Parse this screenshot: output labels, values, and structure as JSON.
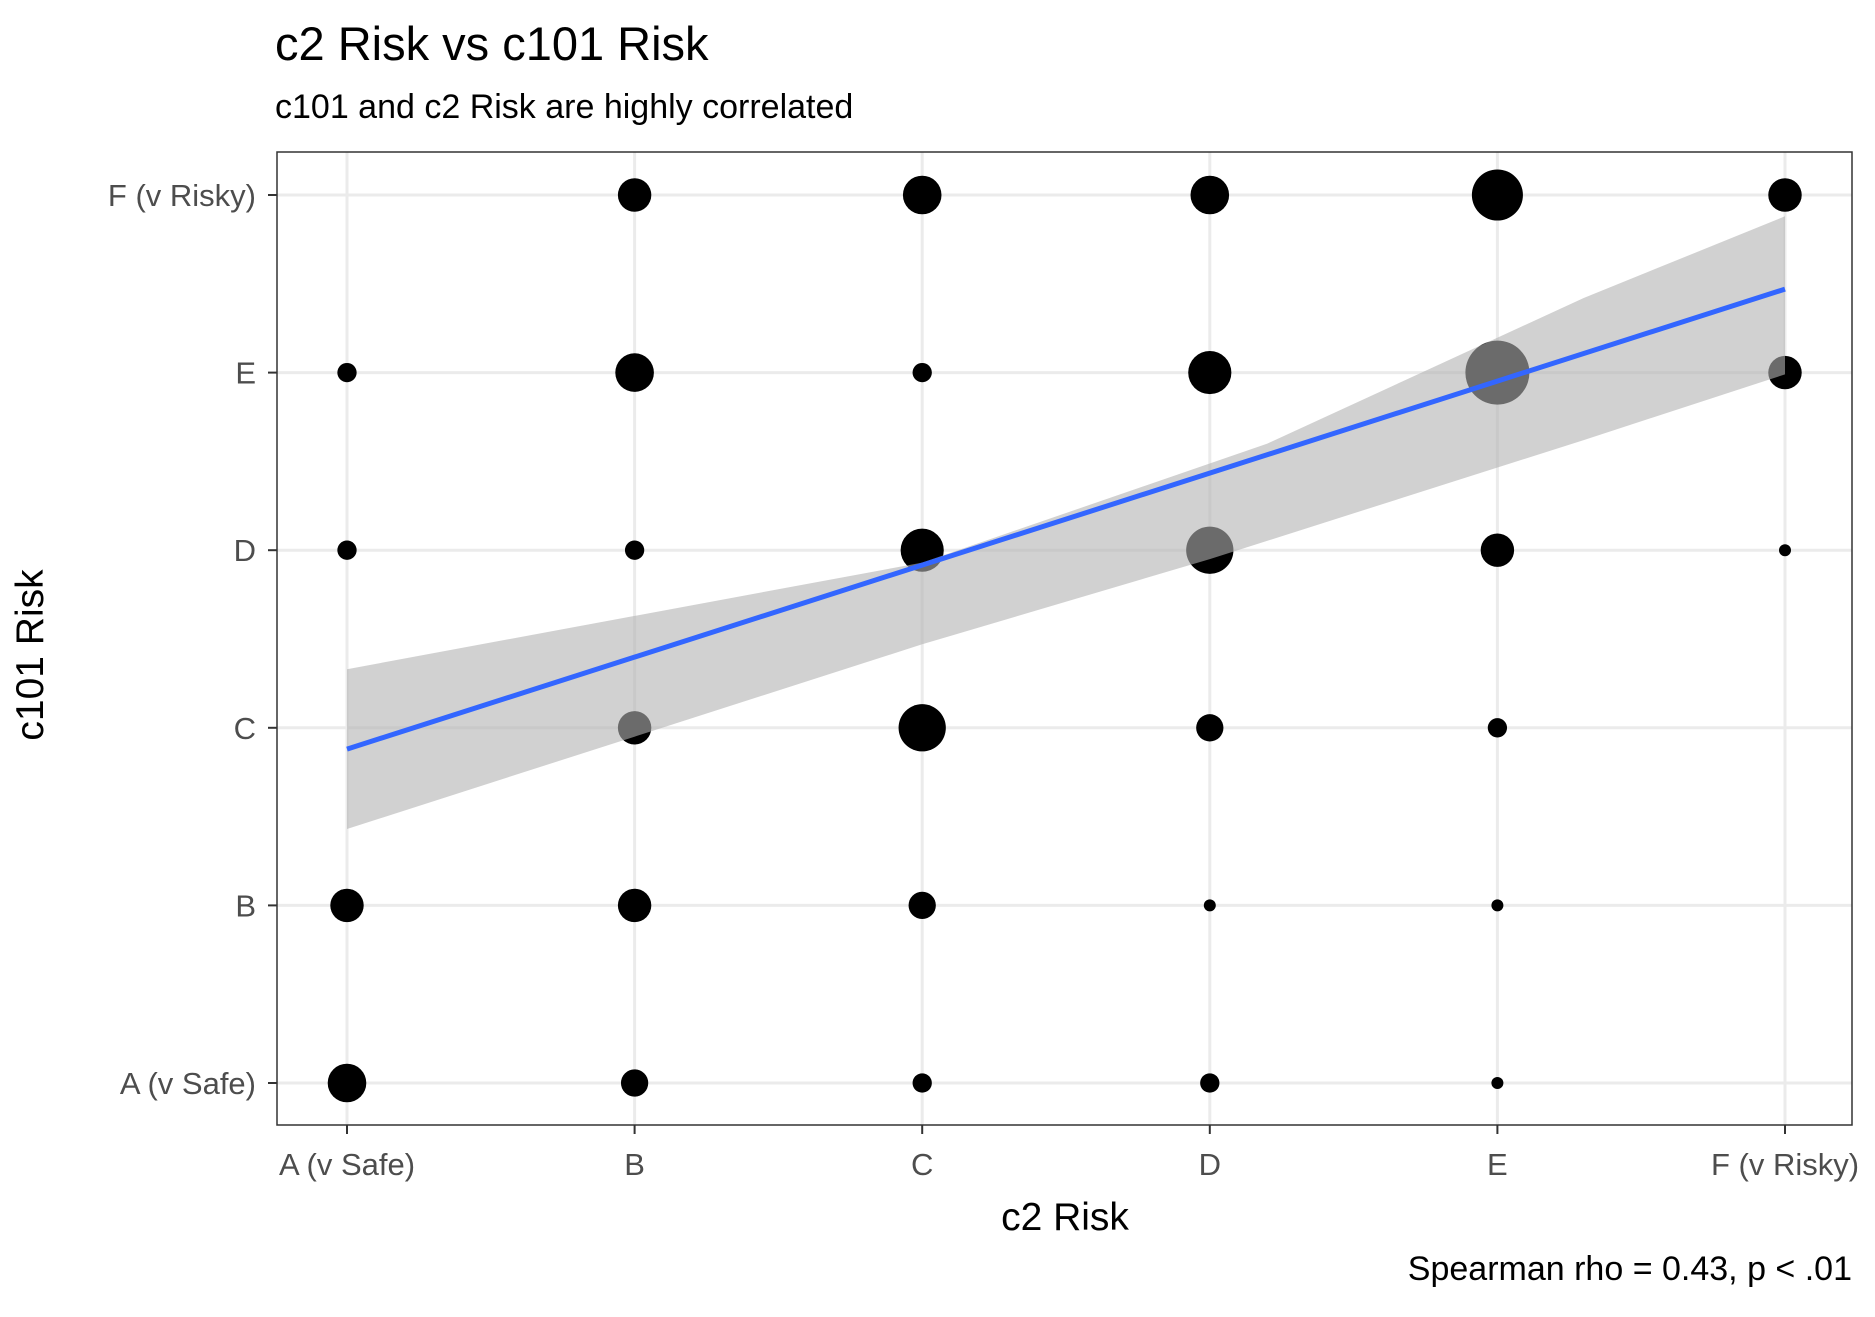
{
  "chart_data": {
    "type": "scatter",
    "title": "c2 Risk vs c101 Risk",
    "subtitle": "c101 and c2 Risk are highly correlated",
    "xlabel": "c2 Risk",
    "ylabel": "c101 Risk",
    "caption": "Spearman rho = 0.43, p < .01",
    "x_categories": [
      "A (v Safe)",
      "B",
      "C",
      "D",
      "E",
      "F (v Risky)"
    ],
    "y_categories": [
      "A (v Safe)",
      "B",
      "C",
      "D",
      "E",
      "F (v Risky)"
    ],
    "grid": true,
    "point_color": "#000000",
    "points": [
      {
        "x": "A (v Safe)",
        "y": "A (v Safe)",
        "size": 4
      },
      {
        "x": "B",
        "y": "A (v Safe)",
        "size": 2
      },
      {
        "x": "C",
        "y": "A (v Safe)",
        "size": 1
      },
      {
        "x": "D",
        "y": "A (v Safe)",
        "size": 1
      },
      {
        "x": "E",
        "y": "A (v Safe)",
        "size": 0.3
      },
      {
        "x": "A (v Safe)",
        "y": "B",
        "size": 3
      },
      {
        "x": "B",
        "y": "B",
        "size": 3
      },
      {
        "x": "C",
        "y": "B",
        "size": 2
      },
      {
        "x": "D",
        "y": "B",
        "size": 0.3
      },
      {
        "x": "E",
        "y": "B",
        "size": 0.3
      },
      {
        "x": "B",
        "y": "C",
        "size": 3
      },
      {
        "x": "C",
        "y": "C",
        "size": 6
      },
      {
        "x": "D",
        "y": "C",
        "size": 2
      },
      {
        "x": "E",
        "y": "C",
        "size": 1
      },
      {
        "x": "A (v Safe)",
        "y": "D",
        "size": 1
      },
      {
        "x": "B",
        "y": "D",
        "size": 1
      },
      {
        "x": "C",
        "y": "D",
        "size": 5
      },
      {
        "x": "D",
        "y": "D",
        "size": 6
      },
      {
        "x": "E",
        "y": "D",
        "size": 3
      },
      {
        "x": "F (v Risky)",
        "y": "D",
        "size": 0.3
      },
      {
        "x": "A (v Safe)",
        "y": "E",
        "size": 1
      },
      {
        "x": "B",
        "y": "E",
        "size": 4
      },
      {
        "x": "C",
        "y": "E",
        "size": 1
      },
      {
        "x": "D",
        "y": "E",
        "size": 5
      },
      {
        "x": "E",
        "y": "E",
        "size": 11
      },
      {
        "x": "F (v Risky)",
        "y": "E",
        "size": 3
      },
      {
        "x": "B",
        "y": "F (v Risky)",
        "size": 3
      },
      {
        "x": "C",
        "y": "F (v Risky)",
        "size": 4
      },
      {
        "x": "D",
        "y": "F (v Risky)",
        "size": 4
      },
      {
        "x": "E",
        "y": "F (v Risky)",
        "size": 7
      },
      {
        "x": "F (v Risky)",
        "y": "F (v Risky)",
        "size": 3
      }
    ],
    "trend_line": {
      "color": "#3366FF",
      "x": [
        1,
        6
      ],
      "y": [
        2.88,
        5.47
      ],
      "band_color": "#b3b3b3",
      "band_lower": [
        2.43,
        4.99
      ],
      "band_upper": [
        3.33,
        5.88
      ]
    }
  }
}
